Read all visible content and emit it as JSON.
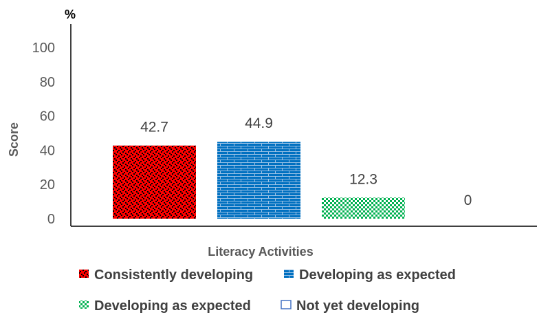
{
  "chart_data": {
    "type": "bar",
    "unit_label": "%",
    "ylabel": "Score",
    "xlabel": "Literacy Activities",
    "ylim": [
      0,
      100
    ],
    "yticks": [
      0,
      20,
      40,
      60,
      80,
      100
    ],
    "grid": false,
    "legend_position": "bottom",
    "series": [
      {
        "name": "Consistently developing",
        "value": 42.7,
        "label": "42.7",
        "pattern": "red-dots",
        "color": "#ff0000",
        "accent": "#000000"
      },
      {
        "name": "Developing as expected",
        "value": 44.9,
        "label": "44.9",
        "pattern": "blue-bricks",
        "color": "#0070c0",
        "accent": "#9dc3e6"
      },
      {
        "name": "Developing as expected",
        "value": 12.3,
        "label": "12.3",
        "pattern": "green-checks",
        "color": "#00b050",
        "accent": "#ffffff"
      },
      {
        "name": "Not yet developing",
        "value": 0,
        "label": "0",
        "pattern": "outline",
        "color": "#4472c4",
        "accent": "#ffffff"
      }
    ]
  }
}
